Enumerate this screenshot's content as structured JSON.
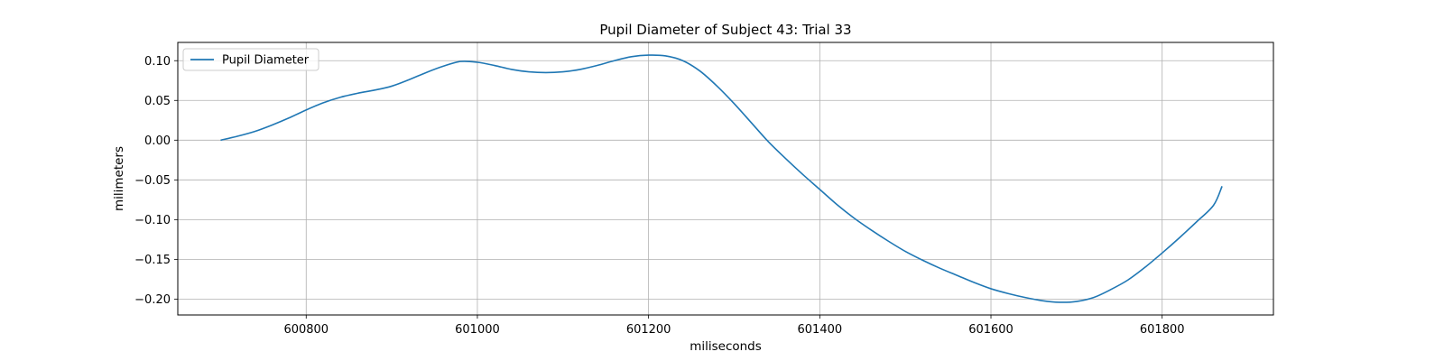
{
  "chart_data": {
    "type": "line",
    "title": "Pupil Diameter of Subject 43: Trial 33",
    "xlabel": "miliseconds",
    "ylabel": "milimeters",
    "xlim": [
      600650,
      601930
    ],
    "ylim": [
      -0.22,
      0.123
    ],
    "xticks": [
      600800,
      601000,
      601200,
      601400,
      601600,
      601800
    ],
    "xtick_labels": [
      "600800",
      "601000",
      "601200",
      "601400",
      "601600",
      "601800"
    ],
    "yticks": [
      0.1,
      0.05,
      0.0,
      -0.05,
      -0.1,
      -0.15,
      -0.2
    ],
    "ytick_labels": [
      "0.10",
      "0.05",
      "0.00",
      "−0.05",
      "−0.10",
      "−0.15",
      "−0.20"
    ],
    "grid": true,
    "legend": {
      "position": "upper-left",
      "entries": [
        "Pupil Diameter"
      ]
    },
    "series": [
      {
        "name": "Pupil Diameter",
        "color": "#1f77b4",
        "x": [
          600700,
          600720,
          600740,
          600760,
          600780,
          600800,
          600820,
          600840,
          600860,
          600880,
          600900,
          600920,
          600940,
          600960,
          600980,
          601000,
          601020,
          601040,
          601060,
          601080,
          601100,
          601120,
          601140,
          601160,
          601180,
          601200,
          601220,
          601240,
          601260,
          601280,
          601300,
          601320,
          601340,
          601360,
          601380,
          601400,
          601420,
          601440,
          601460,
          601480,
          601500,
          601520,
          601540,
          601560,
          601580,
          601600,
          601620,
          601640,
          601660,
          601680,
          601700,
          601720,
          601740,
          601760,
          601780,
          601800,
          601820,
          601840,
          601860,
          601870
        ],
        "y": [
          0.0,
          0.005,
          0.011,
          0.019,
          0.028,
          0.038,
          0.047,
          0.054,
          0.059,
          0.063,
          0.068,
          0.076,
          0.085,
          0.093,
          0.099,
          0.098,
          0.094,
          0.089,
          0.086,
          0.085,
          0.086,
          0.089,
          0.094,
          0.1,
          0.105,
          0.107,
          0.106,
          0.1,
          0.087,
          0.068,
          0.046,
          0.022,
          -0.002,
          -0.023,
          -0.043,
          -0.062,
          -0.081,
          -0.098,
          -0.113,
          -0.127,
          -0.14,
          -0.151,
          -0.161,
          -0.17,
          -0.179,
          -0.187,
          -0.193,
          -0.198,
          -0.202,
          -0.204,
          -0.203,
          -0.198,
          -0.188,
          -0.176,
          -0.16,
          -0.142,
          -0.123,
          -0.103,
          -0.082,
          -0.058
        ]
      }
    ]
  }
}
